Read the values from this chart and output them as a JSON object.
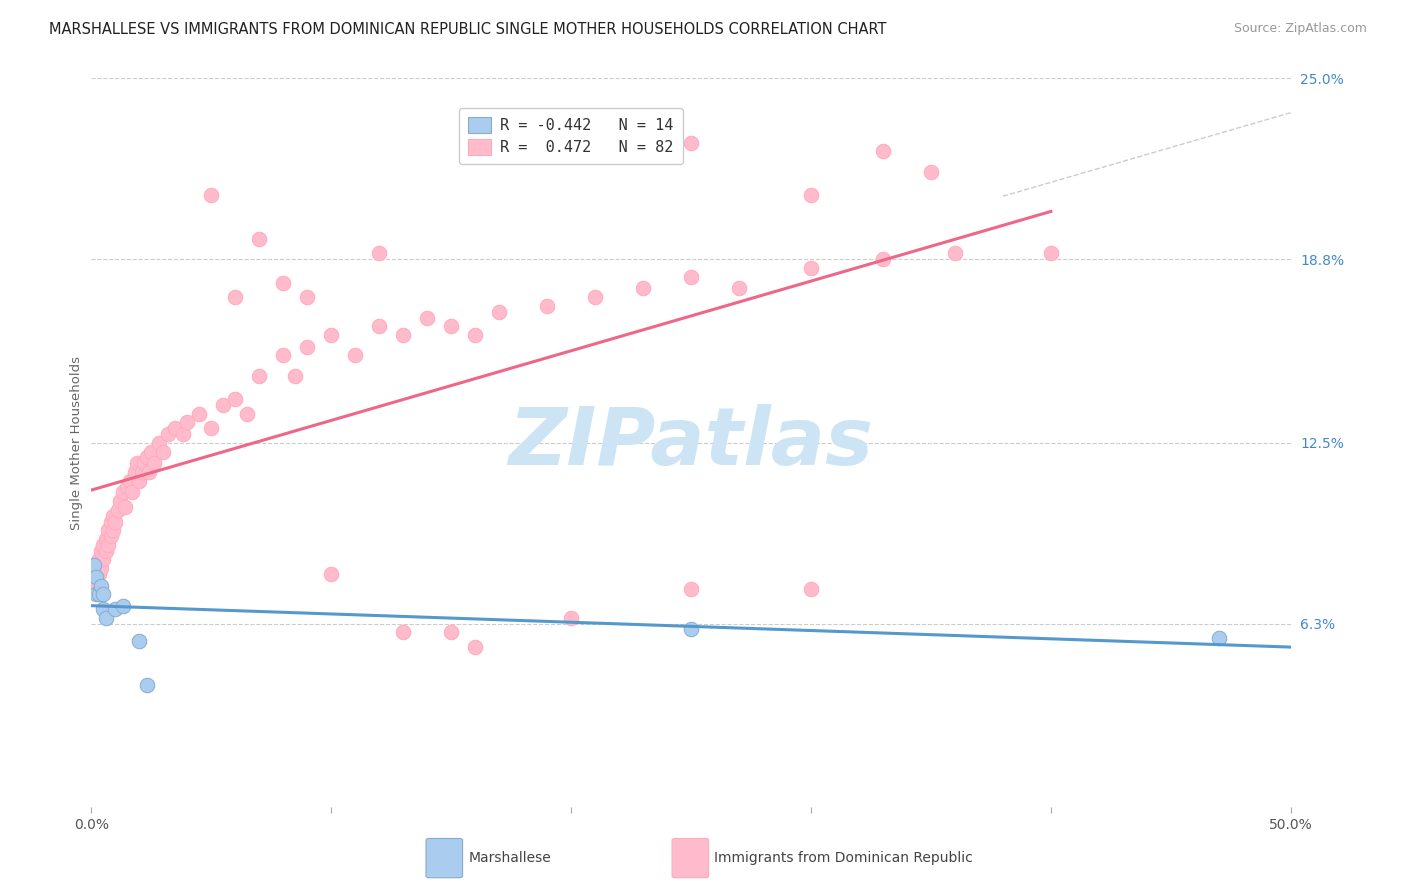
{
  "title": "MARSHALLESE VS IMMIGRANTS FROM DOMINICAN REPUBLIC SINGLE MOTHER HOUSEHOLDS CORRELATION CHART",
  "source": "Source: ZipAtlas.com",
  "ylabel": "Single Mother Households",
  "xlim": [
    0.0,
    0.5
  ],
  "ylim": [
    0.0,
    0.25
  ],
  "xtick_values": [
    0.0,
    0.1,
    0.2,
    0.3,
    0.4,
    0.5
  ],
  "xticklabels": [
    "0.0%",
    "",
    "",
    "",
    "",
    "50.0%"
  ],
  "ytick_labels_right": [
    "25.0%",
    "18.8%",
    "12.5%",
    "6.3%"
  ],
  "ytick_values_right": [
    0.25,
    0.188,
    0.125,
    0.063
  ],
  "marshallese_color": "#aaccee",
  "marshallese_edge": "#88aacc",
  "dominican_color": "#ffbbcc",
  "dominican_edge": "#ffaabb",
  "line_marshallese": "#5599cc",
  "line_dominican": "#ee6688",
  "line_dashed": "#cccccc",
  "watermark_color": "#cce4f4",
  "marshallese_x": [
    0.001,
    0.002,
    0.002,
    0.003,
    0.004,
    0.005,
    0.005,
    0.006,
    0.01,
    0.013,
    0.02,
    0.023,
    0.25,
    0.47
  ],
  "marshallese_y": [
    0.083,
    0.079,
    0.073,
    0.073,
    0.076,
    0.073,
    0.068,
    0.065,
    0.068,
    0.069,
    0.057,
    0.042,
    0.061,
    0.058
  ],
  "dominican_x": [
    0.001,
    0.002,
    0.003,
    0.003,
    0.004,
    0.004,
    0.005,
    0.005,
    0.006,
    0.006,
    0.007,
    0.007,
    0.008,
    0.008,
    0.009,
    0.009,
    0.01,
    0.011,
    0.012,
    0.013,
    0.014,
    0.015,
    0.016,
    0.017,
    0.018,
    0.019,
    0.02,
    0.021,
    0.022,
    0.023,
    0.024,
    0.025,
    0.026,
    0.028,
    0.03,
    0.032,
    0.035,
    0.038,
    0.04,
    0.045,
    0.05,
    0.055,
    0.06,
    0.065,
    0.07,
    0.08,
    0.085,
    0.09,
    0.1,
    0.11,
    0.12,
    0.13,
    0.14,
    0.15,
    0.16,
    0.17,
    0.19,
    0.21,
    0.23,
    0.25,
    0.27,
    0.3,
    0.33,
    0.36,
    0.4,
    0.15,
    0.16,
    0.2,
    0.25,
    0.3,
    0.05,
    0.06,
    0.07,
    0.08,
    0.09,
    0.12,
    0.13,
    0.1,
    0.25,
    0.3,
    0.33,
    0.35
  ],
  "dominican_y": [
    0.075,
    0.078,
    0.08,
    0.085,
    0.082,
    0.088,
    0.085,
    0.09,
    0.088,
    0.092,
    0.09,
    0.095,
    0.093,
    0.098,
    0.095,
    0.1,
    0.098,
    0.102,
    0.105,
    0.108,
    0.103,
    0.11,
    0.112,
    0.108,
    0.115,
    0.118,
    0.112,
    0.115,
    0.118,
    0.12,
    0.115,
    0.122,
    0.118,
    0.125,
    0.122,
    0.128,
    0.13,
    0.128,
    0.132,
    0.135,
    0.13,
    0.138,
    0.14,
    0.135,
    0.148,
    0.155,
    0.148,
    0.158,
    0.162,
    0.155,
    0.165,
    0.162,
    0.168,
    0.165,
    0.162,
    0.17,
    0.172,
    0.175,
    0.178,
    0.182,
    0.178,
    0.185,
    0.188,
    0.19,
    0.19,
    0.06,
    0.055,
    0.065,
    0.075,
    0.075,
    0.21,
    0.175,
    0.195,
    0.18,
    0.175,
    0.19,
    0.06,
    0.08,
    0.228,
    0.21,
    0.225,
    0.218
  ]
}
